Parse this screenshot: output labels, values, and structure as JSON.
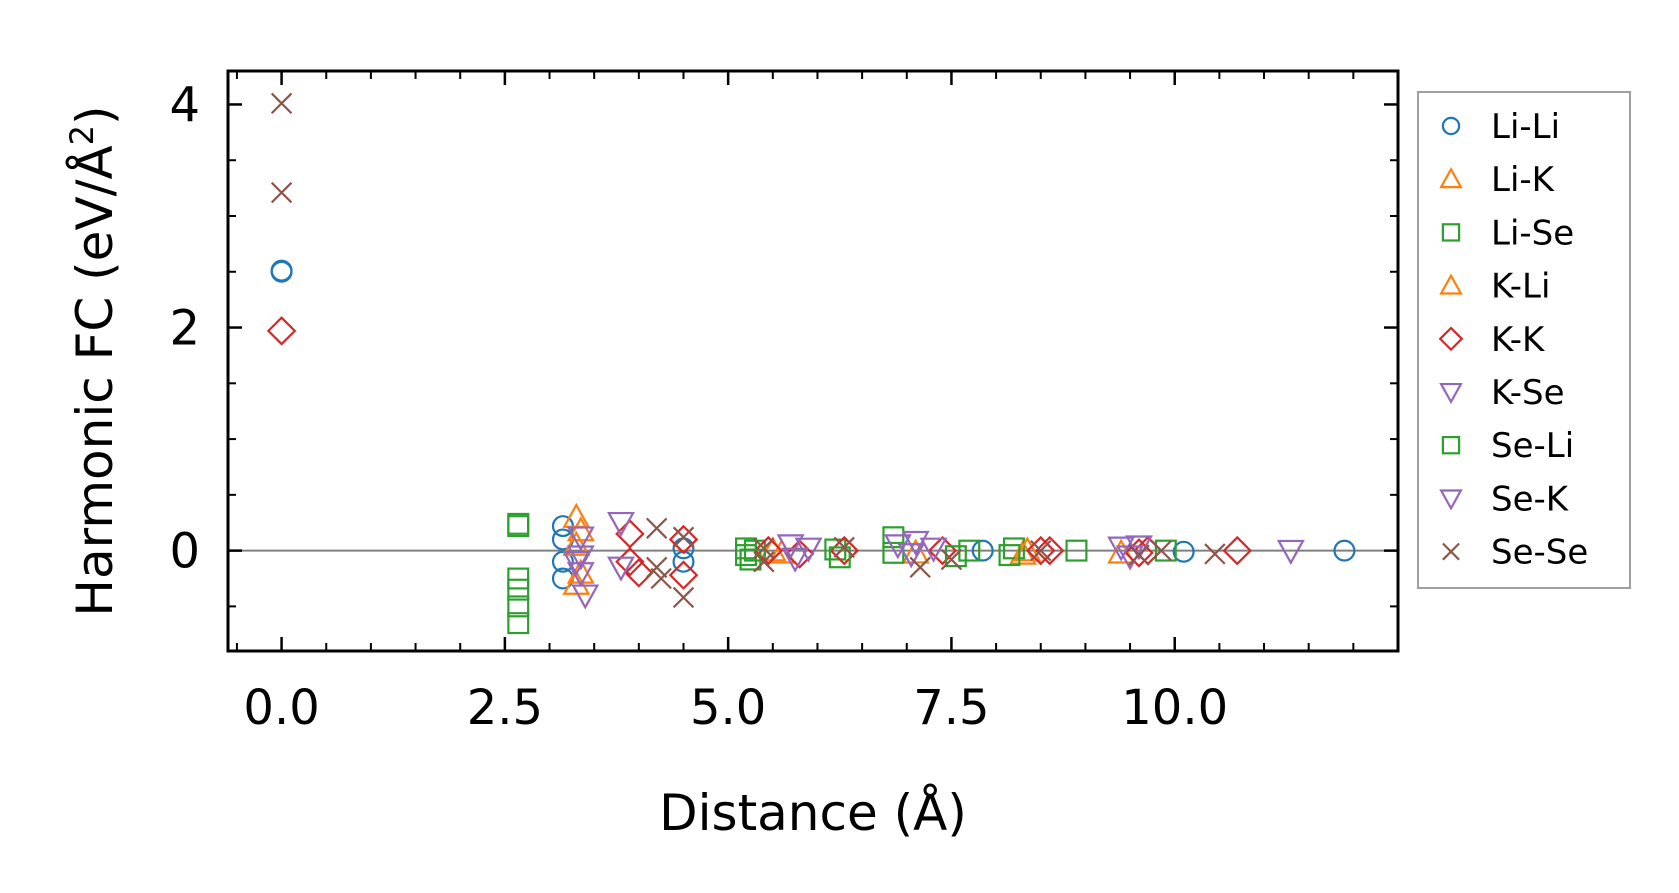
{
  "chart_data": {
    "type": "scatter",
    "title": "",
    "xlabel": "Distance (Å)",
    "ylabel_main": "Harmonic FC (eV/Å",
    "ylabel_sup": "2",
    "ylabel_tail": ")",
    "xlim": [
      -0.6,
      12.5
    ],
    "ylim": [
      -0.9,
      4.3
    ],
    "xticks": [
      0.0,
      2.5,
      5.0,
      7.5,
      10.0
    ],
    "xtick_labels": [
      "0.0",
      "2.5",
      "5.0",
      "7.5",
      "10.0"
    ],
    "yticks": [
      0,
      2,
      4
    ],
    "ytick_labels": [
      "0",
      "2",
      "4"
    ],
    "legend_position": "outside-right",
    "zero_line": true,
    "series": [
      {
        "name": "Li-Li",
        "marker": "circle",
        "color": "#1f77b4",
        "points": [
          [
            0.0,
            2.5
          ],
          [
            0.0,
            2.51
          ],
          [
            3.15,
            0.22
          ],
          [
            3.15,
            0.1
          ],
          [
            3.15,
            -0.1
          ],
          [
            3.15,
            -0.25
          ],
          [
            4.5,
            0.02
          ],
          [
            4.5,
            -0.1
          ],
          [
            7.85,
            0.0
          ],
          [
            10.1,
            -0.01
          ],
          [
            11.9,
            0.0
          ]
        ]
      },
      {
        "name": "Li-K",
        "marker": "triangle-up",
        "color": "#ff7f0e",
        "points": [
          [
            3.3,
            0.3
          ],
          [
            3.3,
            -0.3
          ],
          [
            3.3,
            0.05
          ],
          [
            5.5,
            0.0
          ],
          [
            7.1,
            -0.02
          ],
          [
            8.3,
            -0.03
          ],
          [
            9.4,
            -0.02
          ]
        ]
      },
      {
        "name": "Li-Se",
        "marker": "square",
        "color": "#2ca02c",
        "points": [
          [
            2.65,
            0.22
          ],
          [
            2.65,
            0.24
          ],
          [
            2.65,
            -0.25
          ],
          [
            2.65,
            -0.35
          ],
          [
            2.65,
            -0.5
          ],
          [
            2.65,
            -0.65
          ],
          [
            5.2,
            0.02
          ],
          [
            5.2,
            -0.04
          ],
          [
            5.3,
            0.0
          ],
          [
            6.2,
            0.01
          ],
          [
            6.85,
            0.12
          ],
          [
            6.85,
            -0.02
          ],
          [
            7.7,
            0.0
          ],
          [
            8.2,
            0.02
          ],
          [
            8.9,
            0.0
          ],
          [
            9.9,
            0.0
          ]
        ]
      },
      {
        "name": "K-Li",
        "marker": "triangle-up",
        "color": "#ff7f0e",
        "points": [
          [
            3.35,
            0.18
          ],
          [
            3.35,
            -0.2
          ],
          [
            5.6,
            -0.02
          ],
          [
            8.35,
            0.0
          ]
        ]
      },
      {
        "name": "K-K",
        "marker": "diamond",
        "color": "#d62728",
        "points": [
          [
            0.0,
            1.97
          ],
          [
            3.9,
            0.15
          ],
          [
            3.9,
            -0.1
          ],
          [
            4.0,
            -0.2
          ],
          [
            4.5,
            0.1
          ],
          [
            4.5,
            -0.22
          ],
          [
            5.45,
            0.0
          ],
          [
            5.8,
            -0.03
          ],
          [
            6.3,
            0.0
          ],
          [
            7.4,
            0.0
          ],
          [
            8.5,
            0.0
          ],
          [
            8.6,
            0.0
          ],
          [
            9.6,
            -0.02
          ],
          [
            9.7,
            0.0
          ],
          [
            10.7,
            0.0
          ]
        ]
      },
      {
        "name": "K-Se",
        "marker": "triangle-down",
        "color": "#9467bd",
        "points": [
          [
            3.35,
            0.12
          ],
          [
            3.35,
            -0.05
          ],
          [
            3.35,
            -0.2
          ],
          [
            3.4,
            -0.4
          ],
          [
            3.8,
            0.25
          ],
          [
            3.8,
            -0.15
          ],
          [
            5.7,
            0.05
          ],
          [
            5.9,
            0.02
          ],
          [
            6.9,
            0.05
          ],
          [
            7.1,
            0.08
          ],
          [
            7.3,
            0.02
          ],
          [
            9.4,
            0.03
          ],
          [
            9.6,
            0.04
          ],
          [
            11.3,
            0.0
          ]
        ]
      },
      {
        "name": "Se-Li",
        "marker": "square",
        "color": "#2ca02c",
        "points": [
          [
            5.25,
            -0.08
          ],
          [
            6.25,
            -0.06
          ],
          [
            7.55,
            -0.05
          ],
          [
            8.15,
            -0.04
          ]
        ]
      },
      {
        "name": "Se-K",
        "marker": "triangle-down",
        "color": "#9467bd",
        "points": [
          [
            3.3,
            -0.1
          ],
          [
            5.75,
            -0.07
          ],
          [
            7.05,
            -0.03
          ],
          [
            9.5,
            -0.05
          ]
        ]
      },
      {
        "name": "Se-Se",
        "marker": "x",
        "color": "#8c564b",
        "points": [
          [
            0.0,
            4.01
          ],
          [
            0.0,
            3.21
          ],
          [
            4.2,
            0.2
          ],
          [
            4.2,
            -0.15
          ],
          [
            4.25,
            -0.25
          ],
          [
            4.5,
            0.12
          ],
          [
            4.5,
            -0.42
          ],
          [
            5.4,
            0.02
          ],
          [
            5.4,
            -0.1
          ],
          [
            6.3,
            0.03
          ],
          [
            7.15,
            -0.15
          ],
          [
            7.5,
            -0.08
          ],
          [
            8.5,
            0.0
          ],
          [
            9.6,
            -0.04
          ],
          [
            9.85,
            0.0
          ],
          [
            10.45,
            -0.03
          ]
        ]
      }
    ]
  }
}
